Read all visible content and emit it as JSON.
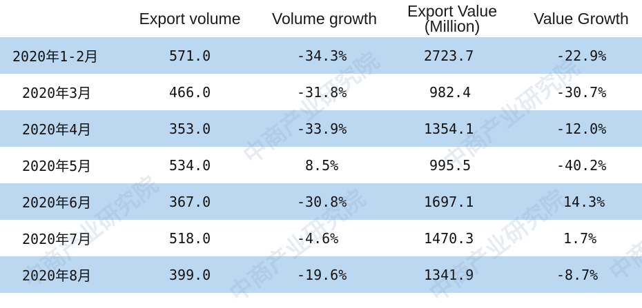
{
  "chart_data": {
    "type": "table",
    "columns": [
      "",
      "Export volume",
      "Volume growth",
      "Export Value (Million)",
      "Value Growth"
    ],
    "header": {
      "col1": "Export volume",
      "col2": "Volume growth",
      "col3_line1": "Export Value",
      "col3_line2": "(Million)",
      "col4": "Value Growth"
    },
    "rows": [
      {
        "period": "2020年1-2月",
        "volume": "571.0",
        "volume_growth": "-34.3%",
        "value": "2723.7",
        "value_growth": "-22.9%"
      },
      {
        "period": "2020年3月",
        "volume": "466.0",
        "volume_growth": "-31.8%",
        "value": "982.4",
        "value_growth": "-30.7%"
      },
      {
        "period": "2020年4月",
        "volume": "353.0",
        "volume_growth": "-33.9%",
        "value": "1354.1",
        "value_growth": "-12.0%"
      },
      {
        "period": "2020年5月",
        "volume": "534.0",
        "volume_growth": "8.5%",
        "value": "995.5",
        "value_growth": "-40.2%"
      },
      {
        "period": "2020年6月",
        "volume": "367.0",
        "volume_growth": "-30.8%",
        "value": "1697.1",
        "value_growth": "14.3%"
      },
      {
        "period": "2020年7月",
        "volume": "518.0",
        "volume_growth": "-4.6%",
        "value": "1470.3",
        "value_growth": "1.7%"
      },
      {
        "period": "2020年8月",
        "volume": "399.0",
        "volume_growth": "-19.6%",
        "value": "1341.9",
        "value_growth": "-8.7%"
      }
    ],
    "colors": {
      "band": "#bcd8f1",
      "plain": "#ffffff",
      "header_bg": "#ffffff"
    }
  },
  "watermark": {
    "text": "中商产业研究院"
  }
}
